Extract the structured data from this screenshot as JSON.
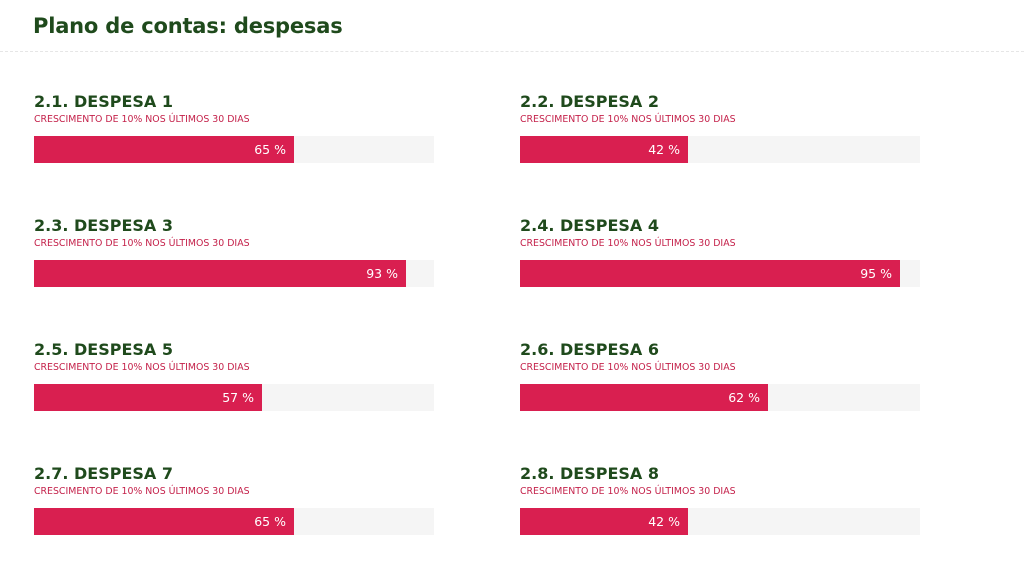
{
  "header": {
    "title": "Plano de contas: despesas"
  },
  "accounts": [
    {
      "title": "2.1. DESPESA 1",
      "subtitle": "CRESCIMENTO DE 10% NOS ÚLTIMOS 30 DIAS",
      "percent": 65,
      "label": "65 %"
    },
    {
      "title": "2.2. DESPESA 2",
      "subtitle": "CRESCIMENTO DE 10% NOS ÚLTIMOS 30 DIAS",
      "percent": 42,
      "label": "42 %"
    },
    {
      "title": "2.3. DESPESA 3",
      "subtitle": "CRESCIMENTO DE 10% NOS ÚLTIMOS 30 DIAS",
      "percent": 93,
      "label": "93 %"
    },
    {
      "title": "2.4. DESPESA 4",
      "subtitle": "CRESCIMENTO DE 10% NOS ÚLTIMOS 30 DIAS",
      "percent": 95,
      "label": "95 %"
    },
    {
      "title": "2.5. DESPESA 5",
      "subtitle": "CRESCIMENTO DE 10% NOS ÚLTIMOS 30 DIAS",
      "percent": 57,
      "label": "57 %"
    },
    {
      "title": "2.6. DESPESA 6",
      "subtitle": "CRESCIMENTO DE 10% NOS ÚLTIMOS 30 DIAS",
      "percent": 62,
      "label": "62 %"
    },
    {
      "title": "2.7. DESPESA 7",
      "subtitle": "CRESCIMENTO DE 10% NOS ÚLTIMOS 30 DIAS",
      "percent": 65,
      "label": "65 %"
    },
    {
      "title": "2.8. DESPESA 8",
      "subtitle": "CRESCIMENTO DE 10% NOS ÚLTIMOS 30 DIAS",
      "percent": 42,
      "label": "42 %"
    }
  ],
  "colors": {
    "heading": "#1f4a1c",
    "accent": "#d91f50",
    "subtitle": "#c4214a",
    "track": "#f5f5f5"
  }
}
